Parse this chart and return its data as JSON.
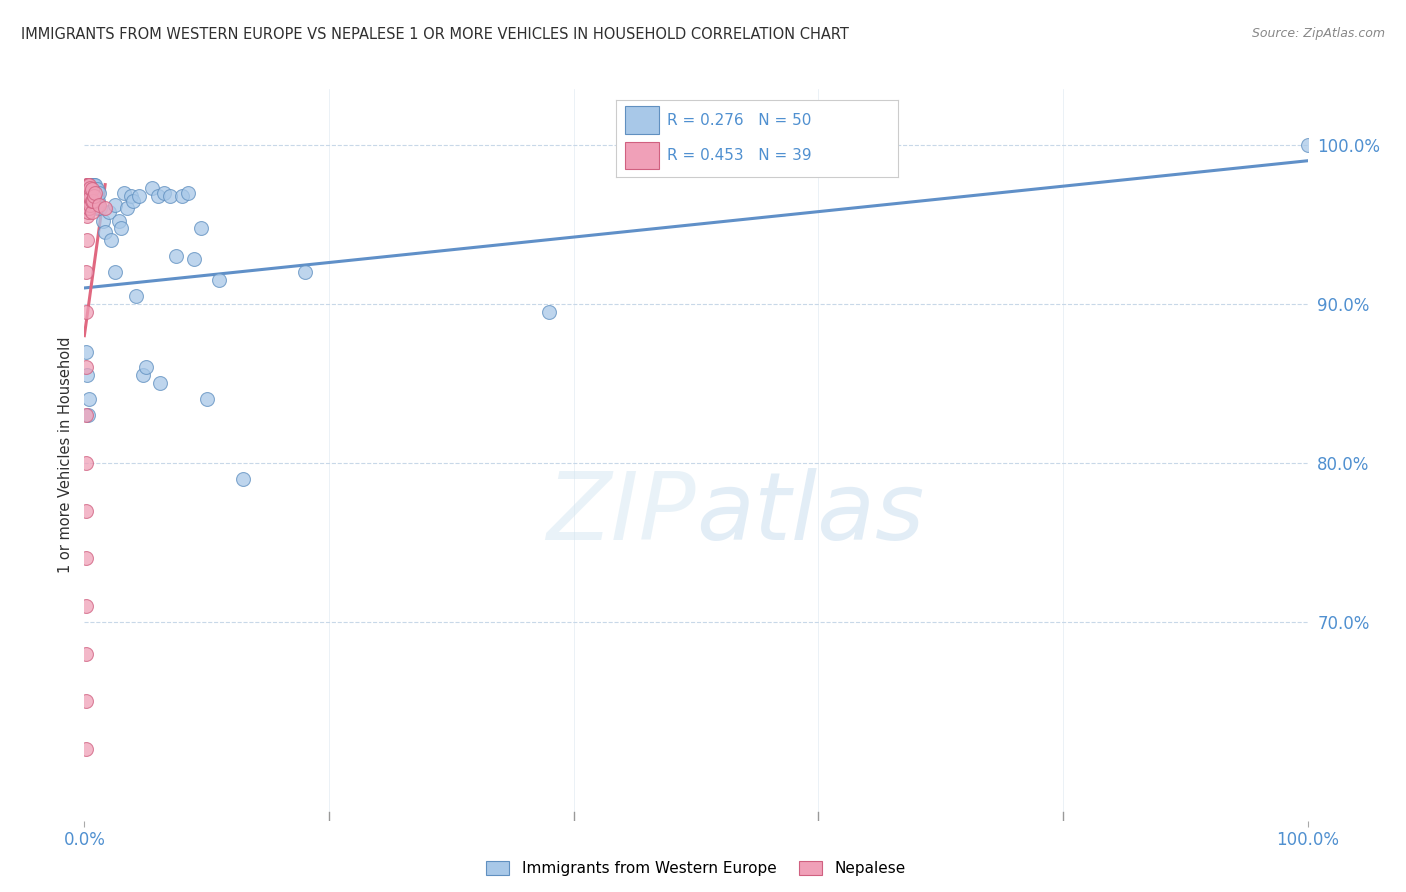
{
  "title": "IMMIGRANTS FROM WESTERN EUROPE VS NEPALESE 1 OR MORE VEHICLES IN HOUSEHOLD CORRELATION CHART",
  "source": "Source: ZipAtlas.com",
  "ylabel": "1 or more Vehicles in Household",
  "xlim": [
    0.0,
    1.0
  ],
  "ylim": [
    0.575,
    1.035
  ],
  "ytick_values": [
    1.0,
    0.9,
    0.8,
    0.7
  ],
  "ytick_labels": [
    "100.0%",
    "90.0%",
    "80.0%",
    "70.0%"
  ],
  "xtick_values": [
    0.0,
    0.2,
    0.4,
    0.6,
    0.8,
    1.0
  ],
  "xtick_labels": [
    "0.0%",
    "",
    "",
    "",
    "",
    "100.0%"
  ],
  "grid_color": "#c8d8e8",
  "background_color": "#ffffff",
  "legend_blue_label": "Immigrants from Western Europe",
  "legend_pink_label": "Nepalese",
  "scatter_blue_color": "#a8c8e8",
  "scatter_pink_color": "#f0a0b8",
  "scatter_blue_edge": "#6090c0",
  "scatter_pink_edge": "#d06080",
  "R_blue": 0.276,
  "N_blue": 50,
  "R_pink": 0.453,
  "N_pink": 39,
  "line_blue_color": "#6090c8",
  "line_pink_color": "#e06880",
  "title_color": "#303030",
  "axis_label_color": "#303030",
  "tick_label_color": "#5090d0",
  "blue_x": [
    0.001,
    0.002,
    0.003,
    0.004,
    0.005,
    0.005,
    0.006,
    0.006,
    0.007,
    0.007,
    0.008,
    0.008,
    0.009,
    0.01,
    0.01,
    0.011,
    0.012,
    0.013,
    0.015,
    0.017,
    0.02,
    0.022,
    0.025,
    0.025,
    0.028,
    0.03,
    0.032,
    0.035,
    0.038,
    0.04,
    0.042,
    0.045,
    0.048,
    0.05,
    0.055,
    0.06,
    0.062,
    0.065,
    0.07,
    0.075,
    0.08,
    0.085,
    0.09,
    0.095,
    0.1,
    0.11,
    0.13,
    0.18,
    0.38,
    1.0
  ],
  "blue_y": [
    0.87,
    0.855,
    0.83,
    0.84,
    0.975,
    0.965,
    0.975,
    0.97,
    0.975,
    0.965,
    0.975,
    0.968,
    0.975,
    0.972,
    0.96,
    0.965,
    0.97,
    0.96,
    0.952,
    0.945,
    0.958,
    0.94,
    0.962,
    0.92,
    0.952,
    0.948,
    0.97,
    0.96,
    0.968,
    0.965,
    0.905,
    0.968,
    0.855,
    0.86,
    0.973,
    0.968,
    0.85,
    0.97,
    0.968,
    0.93,
    0.968,
    0.97,
    0.928,
    0.948,
    0.84,
    0.915,
    0.79,
    0.92,
    0.895,
    1.0
  ],
  "pink_x": [
    0.001,
    0.001,
    0.001,
    0.001,
    0.001,
    0.001,
    0.001,
    0.001,
    0.001,
    0.001,
    0.001,
    0.002,
    0.002,
    0.002,
    0.002,
    0.002,
    0.002,
    0.002,
    0.003,
    0.003,
    0.003,
    0.003,
    0.003,
    0.003,
    0.004,
    0.004,
    0.004,
    0.004,
    0.005,
    0.005,
    0.005,
    0.006,
    0.006,
    0.006,
    0.007,
    0.008,
    0.009,
    0.012,
    0.017
  ],
  "pink_y": [
    0.62,
    0.65,
    0.68,
    0.71,
    0.74,
    0.77,
    0.8,
    0.83,
    0.86,
    0.895,
    0.92,
    0.94,
    0.955,
    0.96,
    0.965,
    0.97,
    0.975,
    0.975,
    0.958,
    0.962,
    0.965,
    0.97,
    0.975,
    0.975,
    0.96,
    0.965,
    0.97,
    0.975,
    0.962,
    0.967,
    0.973,
    0.958,
    0.965,
    0.972,
    0.965,
    0.968,
    0.97,
    0.962,
    0.96
  ],
  "blue_line_x0": 0.0,
  "blue_line_x1": 1.0,
  "blue_line_y0": 0.91,
  "blue_line_y1": 0.99,
  "pink_line_x0": 0.0,
  "pink_line_x1": 0.017,
  "pink_line_y0": 0.88,
  "pink_line_y1": 0.975
}
